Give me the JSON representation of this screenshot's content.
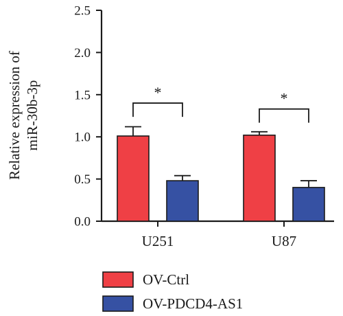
{
  "chart_data": {
    "type": "bar",
    "title": "",
    "ylabel_lines": [
      "Relative expression of",
      "miR-30b-3p"
    ],
    "ylim": [
      0,
      2.5
    ],
    "yticks": [
      "0.0",
      "0.5",
      "1.0",
      "1.5",
      "2.0",
      "2.5"
    ],
    "categories": [
      "U251",
      "U87"
    ],
    "series": [
      {
        "name": "OV-Ctrl",
        "color": "#ef4045",
        "values": [
          1.01,
          1.02
        ],
        "errors": [
          0.11,
          0.04
        ]
      },
      {
        "name": "OV-PDCD4-AS1",
        "color": "#3651a3",
        "values": [
          0.48,
          0.4
        ],
        "errors": [
          0.06,
          0.08
        ]
      }
    ],
    "significance": [
      {
        "category": "U251",
        "label": "*",
        "level": 1.4
      },
      {
        "category": "U87",
        "label": "*",
        "level": 1.33
      }
    ],
    "legend_placement": "bottom-left",
    "grid": false
  }
}
